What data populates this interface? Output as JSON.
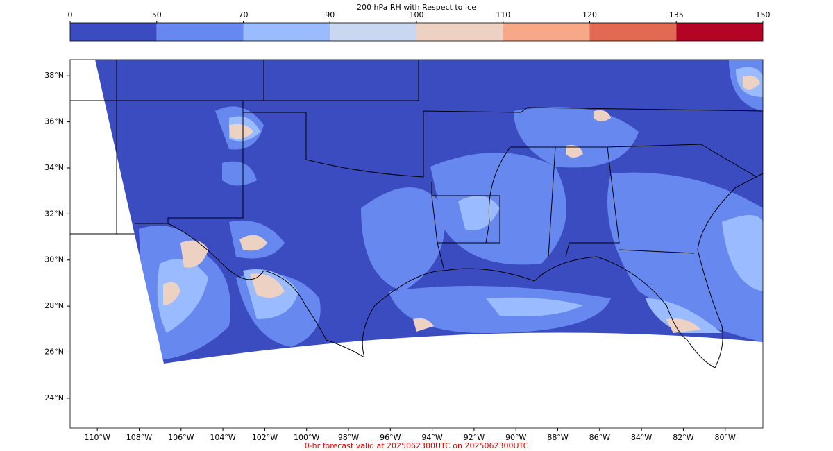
{
  "colorbar": {
    "title": "200 hPa RH with Respect to Ice",
    "ticks": [
      0,
      50,
      70,
      90,
      100,
      110,
      120,
      135,
      150
    ],
    "colors": [
      "#3b4cc0",
      "#6788ee",
      "#9abbff",
      "#c9d7f0",
      "#edd1c2",
      "#f7a889",
      "#e26952",
      "#b40426"
    ]
  },
  "map": {
    "xlim": [
      -111.3,
      -78.2
    ],
    "ylim": [
      22.7,
      38.7
    ],
    "lat_ticks": [
      {
        "value": 38,
        "label": "38°N"
      },
      {
        "value": 36,
        "label": "36°N"
      },
      {
        "value": 34,
        "label": "34°N"
      },
      {
        "value": 32,
        "label": "32°N"
      },
      {
        "value": 30,
        "label": "30°N"
      },
      {
        "value": 28,
        "label": "28°N"
      },
      {
        "value": 26,
        "label": "26°N"
      },
      {
        "value": 24,
        "label": "24°N"
      }
    ],
    "lon_ticks": [
      {
        "value": -110,
        "label": "110°W"
      },
      {
        "value": -108,
        "label": "108°W"
      },
      {
        "value": -106,
        "label": "106°W"
      },
      {
        "value": -104,
        "label": "104°W"
      },
      {
        "value": -102,
        "label": "102°W"
      },
      {
        "value": -100,
        "label": "100°W"
      },
      {
        "value": -98,
        "label": "98°W"
      },
      {
        "value": -96,
        "label": "96°W"
      },
      {
        "value": -94,
        "label": "94°W"
      },
      {
        "value": -92,
        "label": "92°W"
      },
      {
        "value": -90,
        "label": "90°W"
      },
      {
        "value": -88,
        "label": "88°W"
      },
      {
        "value": -86,
        "label": "86°W"
      },
      {
        "value": -84,
        "label": "84°W"
      },
      {
        "value": -82,
        "label": "82°W"
      },
      {
        "value": -80,
        "label": "80°W"
      }
    ]
  },
  "footer": "0-hr forecast valid at 2025062300UTC on 2025062300UTC"
}
